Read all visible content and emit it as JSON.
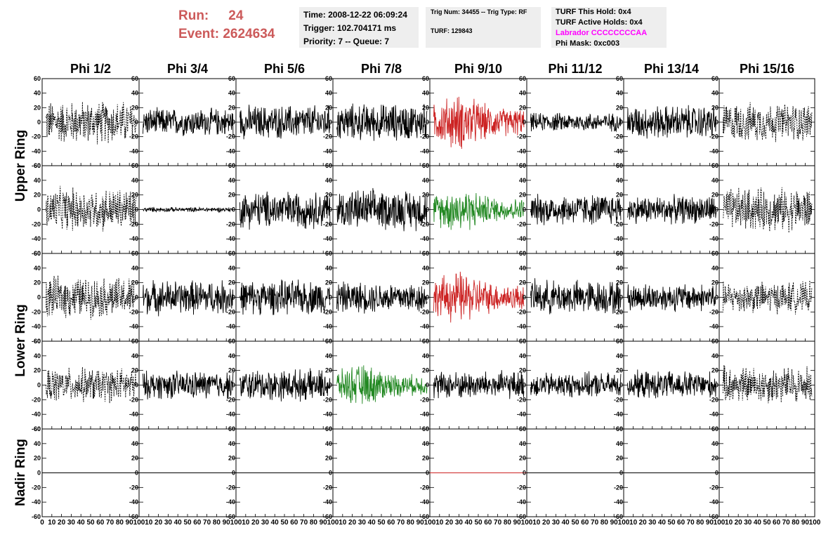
{
  "header": {
    "run_label": "Run:",
    "run_value": "24",
    "event_label": "Event:",
    "event_value": "2624634",
    "time": "Time: 2008-12-22 06:09:24",
    "trigger": "Trigger: 102.704171 ms",
    "priority": "Priority: 7 -- Queue: 7",
    "trig_num": "Trig Num: 34455 -- Trig Type: RF",
    "turf": "TURF: 129843",
    "turf_hold": "TURF This Hold: 0x4",
    "turf_active": "TURF Active Holds: 0x4",
    "labrador": "Labrador CCCCCCCCAA",
    "phi_mask": "Phi Mask: 0xc003"
  },
  "colors": {
    "run_text": "#cc5a5a",
    "labrador_text": "#ff00ff",
    "normal_trace": "#000000",
    "red_trace": "#cc2222",
    "green_trace": "#228822"
  },
  "chart_data": {
    "type": "line",
    "columns": [
      "Phi 1/2",
      "Phi 3/4",
      "Phi 5/6",
      "Phi 7/8",
      "Phi 9/10",
      "Phi 11/12",
      "Phi 13/14",
      "Phi 15/16"
    ],
    "rows": [
      "Upper Ring",
      "Upper Ring",
      "Lower Ring",
      "Lower Ring",
      "Nadir Ring"
    ],
    "ring_labels": [
      "Upper Ring",
      "Lower Ring",
      "Nadir Ring"
    ],
    "xlim": [
      0,
      100
    ],
    "ylim": [
      -60,
      60
    ],
    "x_ticks": [
      "0",
      "10",
      "20",
      "30",
      "40",
      "50",
      "60",
      "70",
      "80",
      "90",
      "100"
    ],
    "y_ticks": [
      "60",
      "40",
      "20",
      "0",
      "-20",
      "-40",
      "-60"
    ],
    "panels": [
      [
        "dashed",
        "solid",
        "solid",
        "solid",
        "red",
        "solid",
        "solid",
        "dashed"
      ],
      [
        "dashed",
        "flat",
        "solid",
        "solid",
        "green",
        "solid",
        "solid",
        "dashed"
      ],
      [
        "dashed",
        "solid",
        "solid",
        "solid",
        "red",
        "solid",
        "solid",
        "dashed"
      ],
      [
        "dashed",
        "solid",
        "solid",
        "green",
        "solid",
        "solid",
        "solid",
        "dashed"
      ],
      [
        "zero",
        "zero",
        "zero",
        "zero",
        "zero-red",
        "zero",
        "zero",
        "zero"
      ]
    ],
    "amplitudes": [
      [
        28,
        18,
        22,
        24,
        30,
        12,
        22,
        25
      ],
      [
        28,
        3,
        24,
        26,
        24,
        20,
        18,
        28
      ],
      [
        26,
        22,
        22,
        20,
        28,
        22,
        18,
        20
      ],
      [
        22,
        18,
        20,
        22,
        18,
        16,
        18,
        24
      ],
      [
        0,
        0,
        0,
        0,
        0,
        0,
        0,
        0
      ]
    ]
  }
}
